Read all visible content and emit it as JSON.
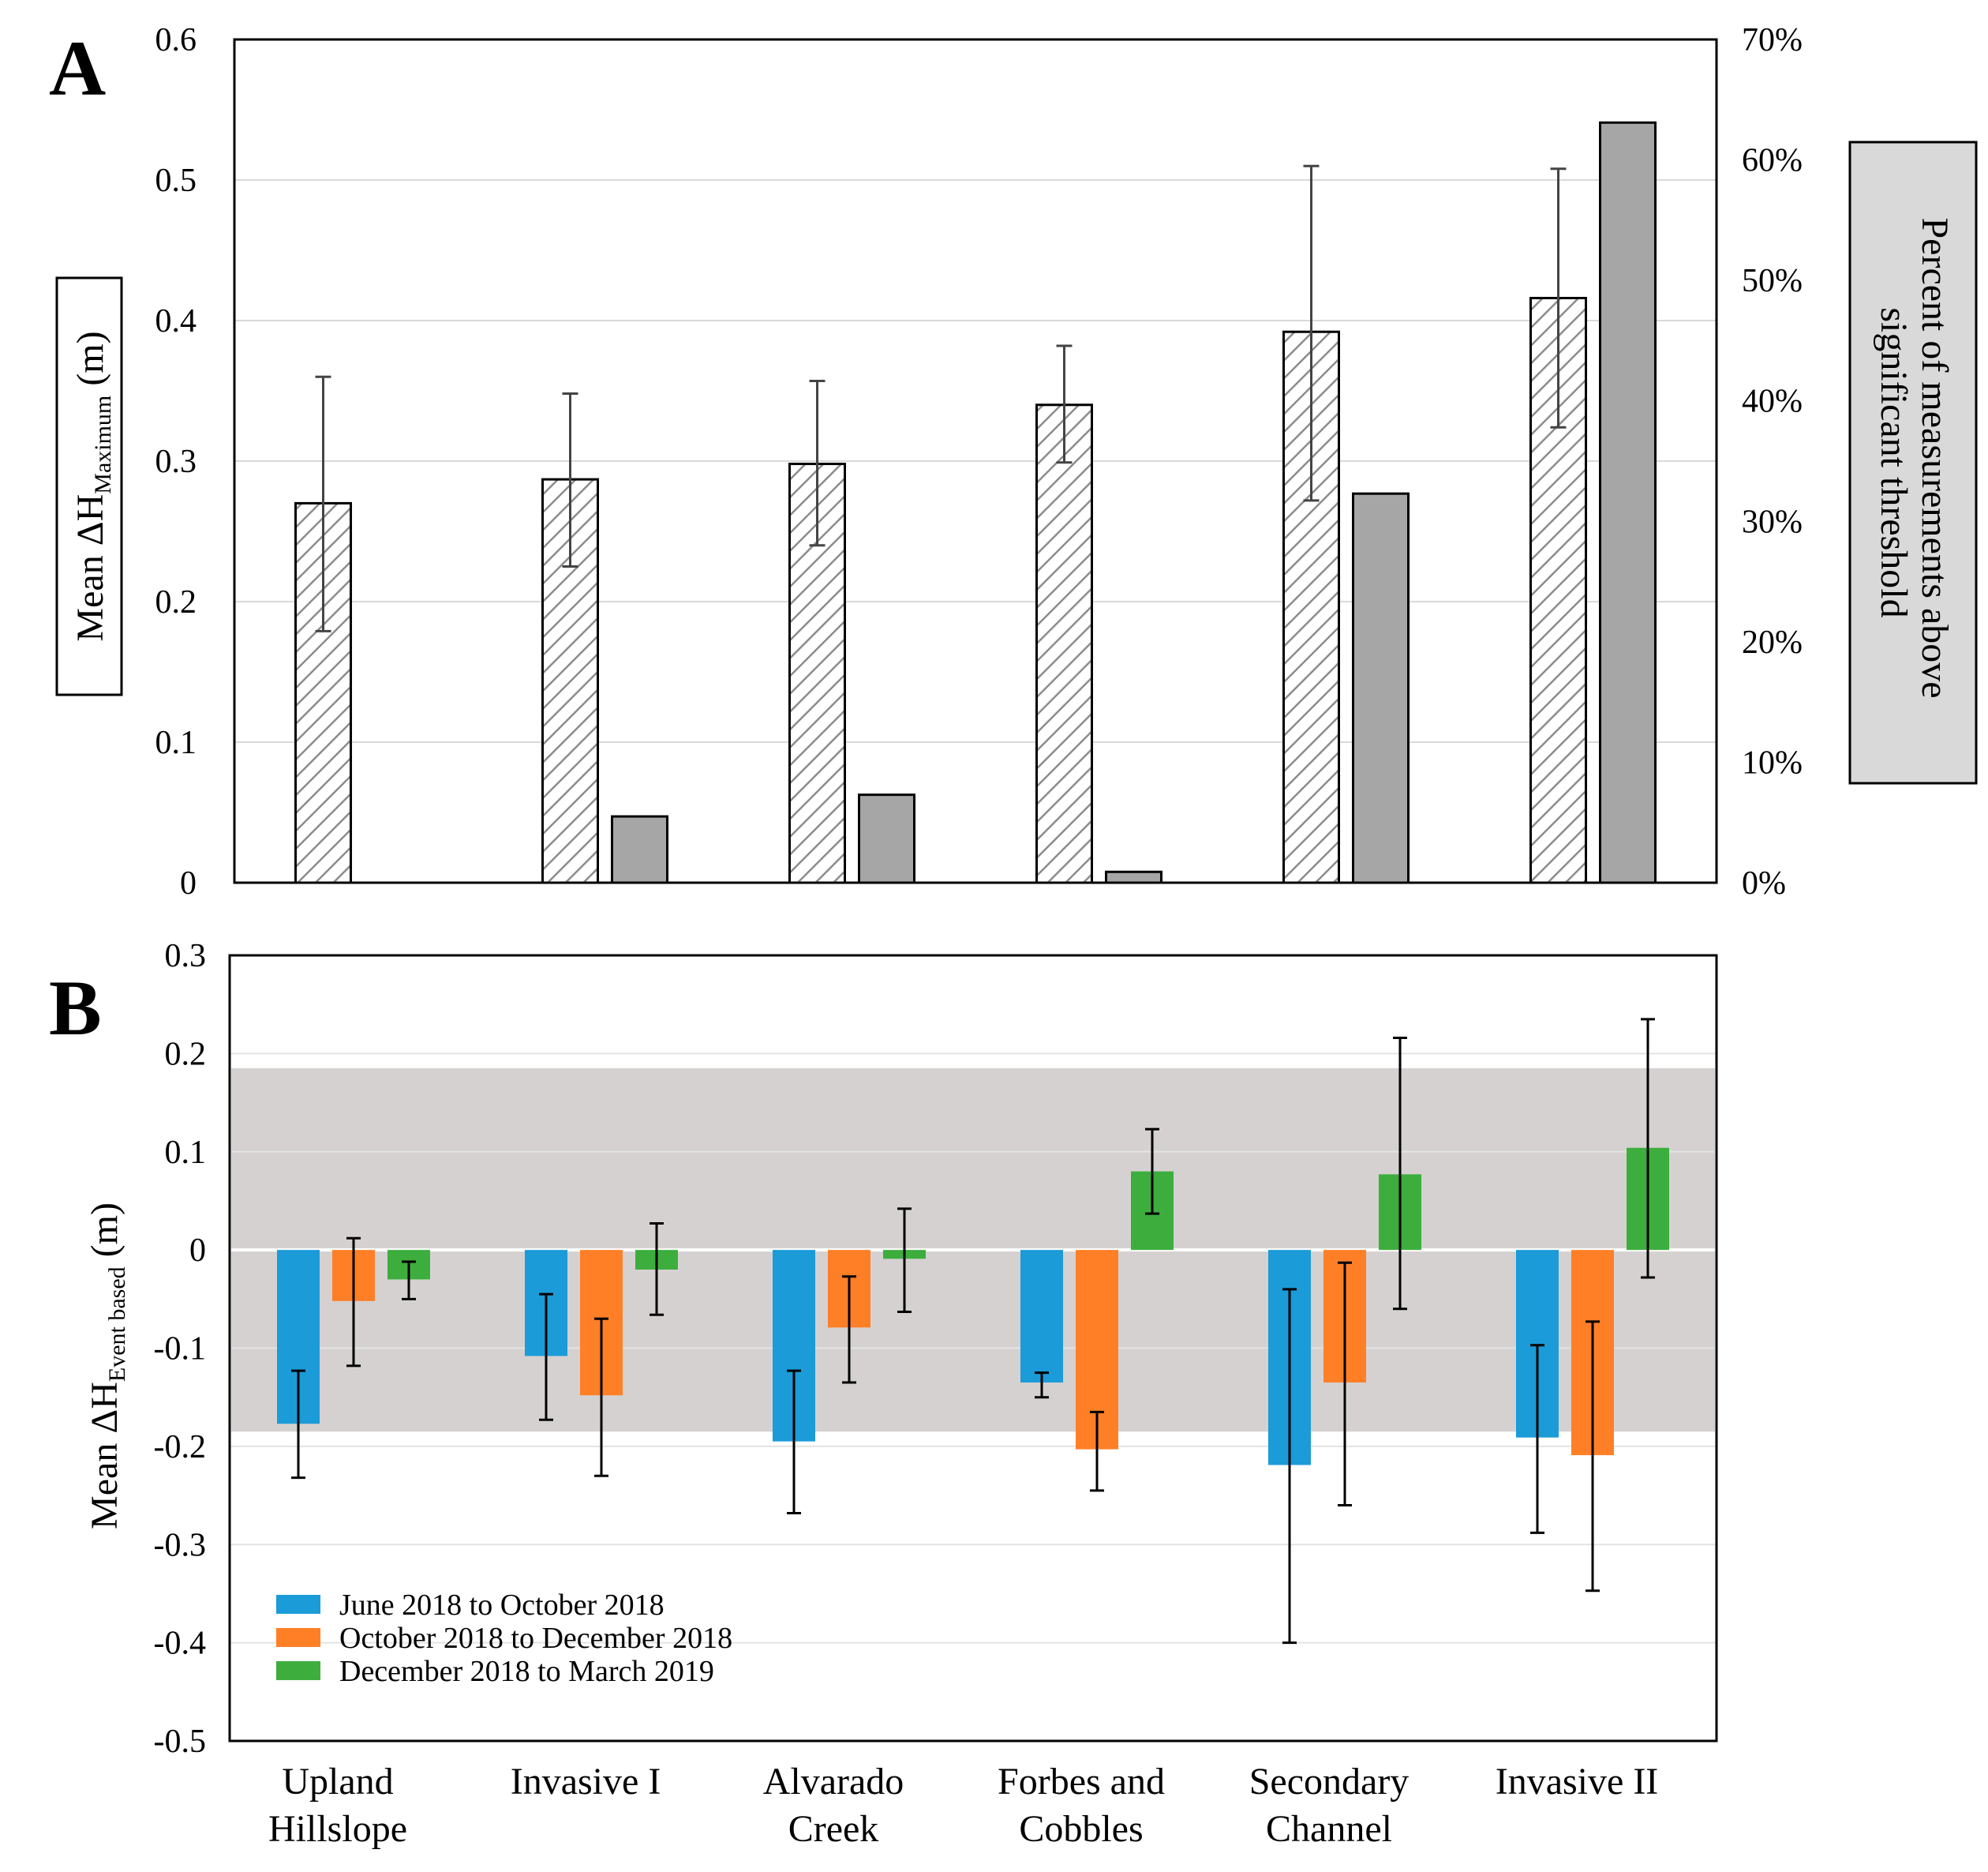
{
  "figure": {
    "panel_a_label": "A",
    "panel_b_label": "B"
  },
  "chart_data": [
    {
      "type": "bar",
      "panel": "A",
      "categories": [
        [
          "Upland",
          "Hillslope"
        ],
        [
          "Invasive I"
        ],
        [
          "Alvarado",
          "Creek"
        ],
        [
          "Forbes and",
          "Cobbles"
        ],
        [
          "Secondary",
          "Channel"
        ],
        [
          "Invasive II"
        ]
      ],
      "y_left": {
        "label_main": "Mean ΔH",
        "label_sub": "Maximum",
        "label_unit": " (m)",
        "ylim": [
          0,
          0.6
        ],
        "ticks": [
          0,
          0.1,
          0.2,
          0.3,
          0.4,
          0.5,
          0.6
        ],
        "tick_labels": [
          "0",
          "0.1",
          "0.2",
          "0.3",
          "0.4",
          "0.5",
          "0.6"
        ]
      },
      "y_right": {
        "label_line1": "Percent  of  measurements  above",
        "label_line2": "significant  threshold",
        "ylim": [
          0,
          70
        ],
        "ticks": [
          0,
          10,
          20,
          30,
          40,
          50,
          60,
          70
        ],
        "tick_labels": [
          "0%",
          "10%",
          "20%",
          "30%",
          "40%",
          "50%",
          "60%",
          "70%"
        ]
      },
      "series": [
        {
          "name": "Mean ΔH Maximum",
          "axis": "left",
          "style": "hatched",
          "values": [
            0.27,
            0.287,
            0.298,
            0.34,
            0.392,
            0.416
          ],
          "error_low": [
            0.179,
            0.225,
            0.24,
            0.299,
            0.272,
            0.324
          ],
          "error_high": [
            0.36,
            0.348,
            0.357,
            0.382,
            0.51,
            0.508
          ]
        },
        {
          "name": "Percent of measurements above significant threshold",
          "axis": "right",
          "style": "solid",
          "color": "#a6a6a6",
          "values": [
            0,
            5.5,
            7.3,
            0.9,
            32.3,
            63.1
          ]
        }
      ]
    },
    {
      "type": "bar",
      "panel": "B",
      "categories": [
        [
          "Upland",
          "Hillslope"
        ],
        [
          "Invasive I"
        ],
        [
          "Alvarado",
          "Creek"
        ],
        [
          "Forbes and",
          "Cobbles"
        ],
        [
          "Secondary",
          "Channel"
        ],
        [
          "Invasive II"
        ]
      ],
      "y": {
        "label_main": "Mean ΔH",
        "label_sub": "Event based",
        "label_unit": " (m)",
        "ylim": [
          -0.5,
          0.3
        ],
        "ticks": [
          -0.5,
          -0.4,
          -0.3,
          -0.2,
          -0.1,
          0,
          0.1,
          0.2,
          0.3
        ],
        "tick_labels": [
          "-0.5",
          "-0.4",
          "-0.3",
          "-0.2",
          "-0.1",
          "0",
          "0.1",
          "0.2",
          "0.3"
        ]
      },
      "significance_band": {
        "low": -0.185,
        "high": 0.185,
        "color": "#d5d1d1"
      },
      "legend": {
        "position": "bottom-left"
      },
      "series": [
        {
          "name": "June 2018 to October 2018",
          "color": "#1b9bd8",
          "values": [
            -0.177,
            -0.108,
            -0.195,
            -0.135,
            -0.219,
            -0.191
          ],
          "error_low": [
            -0.232,
            -0.173,
            -0.268,
            -0.15,
            -0.4,
            -0.288
          ],
          "error_high": [
            -0.123,
            -0.045,
            -0.123,
            -0.125,
            -0.04,
            -0.097
          ]
        },
        {
          "name": "October 2018 to December 2018",
          "color": "#ff7f27",
          "values": [
            -0.052,
            -0.148,
            -0.079,
            -0.203,
            -0.135,
            -0.209
          ],
          "error_low": [
            -0.118,
            -0.23,
            -0.135,
            -0.245,
            -0.26,
            -0.347
          ],
          "error_high": [
            0.012,
            -0.07,
            -0.027,
            -0.165,
            -0.013,
            -0.073
          ]
        },
        {
          "name": "December 2018 to March 2019",
          "color": "#3dae3d",
          "values": [
            -0.03,
            -0.02,
            -0.009,
            0.08,
            0.077,
            0.104
          ],
          "error_low": [
            -0.05,
            -0.066,
            -0.063,
            0.037,
            -0.06,
            -0.028
          ],
          "error_high": [
            -0.012,
            0.027,
            0.042,
            0.123,
            0.216,
            0.235
          ]
        }
      ]
    }
  ]
}
